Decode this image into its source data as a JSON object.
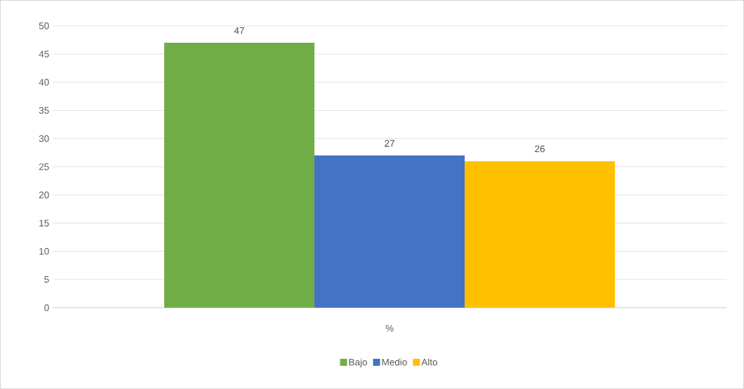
{
  "chart_data": {
    "type": "bar",
    "categories": [
      "%"
    ],
    "series": [
      {
        "name": "Bajo",
        "color": "#70ad47",
        "values": [
          47
        ]
      },
      {
        "name": "Medio",
        "color": "#4472c4",
        "values": [
          27
        ]
      },
      {
        "name": "Alto",
        "color": "#ffc000",
        "values": [
          26
        ]
      }
    ],
    "ylim": [
      0,
      50
    ],
    "yticks": [
      0,
      5,
      10,
      15,
      20,
      25,
      30,
      35,
      40,
      45,
      50
    ],
    "grid": "y",
    "legend": "bottom",
    "data_labels": true
  }
}
